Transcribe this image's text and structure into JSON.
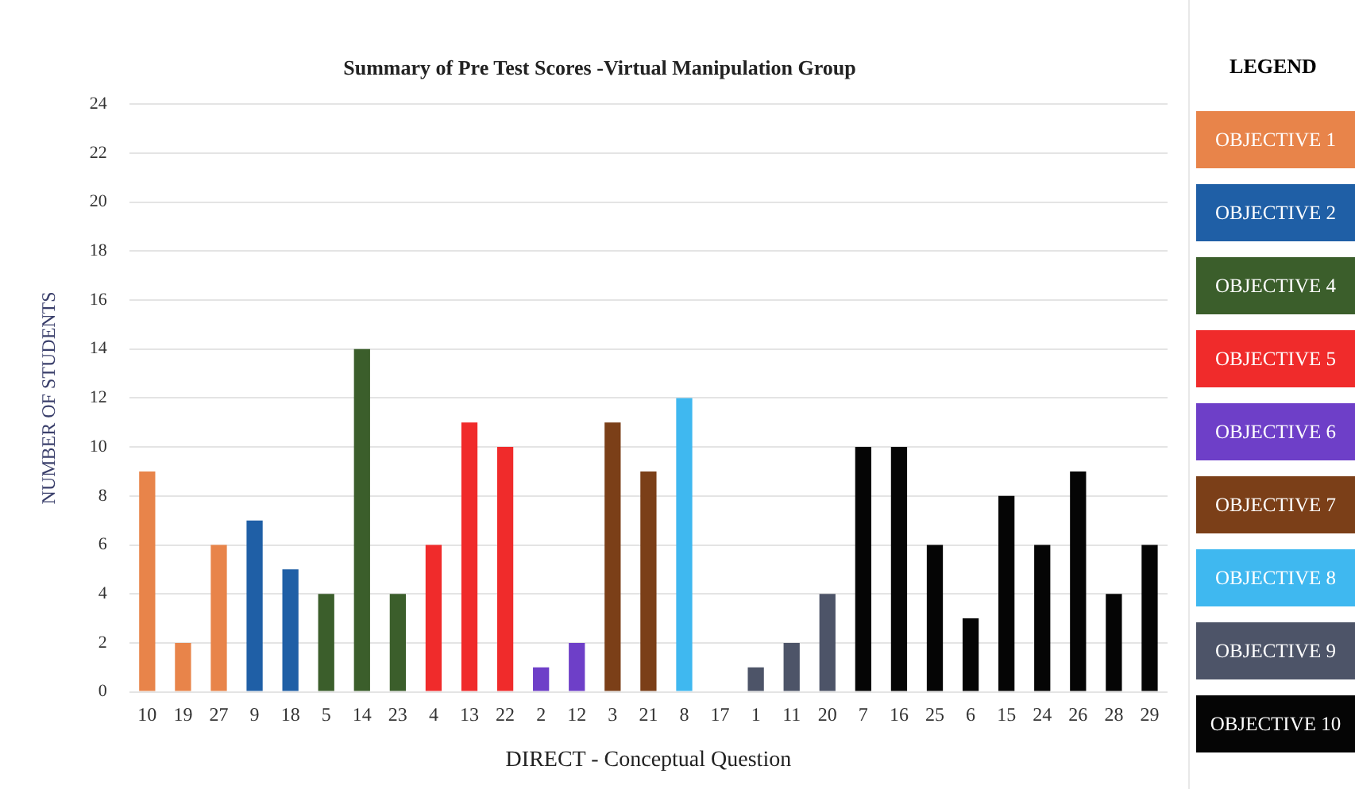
{
  "chart_data": {
    "type": "bar",
    "title": "Summary of Pre Test Scores -Virtual Manipulation Group",
    "xlabel": "DIRECT - Conceptual Question",
    "ylabel": "NUMBER OF STUDENTS",
    "legend_title": "LEGEND",
    "categories": [
      "10",
      "19",
      "27",
      "9",
      "18",
      "5",
      "14",
      "23",
      "4",
      "13",
      "22",
      "2",
      "12",
      "3",
      "21",
      "8",
      "17",
      "1",
      "11",
      "20",
      "7",
      "16",
      "25",
      "6",
      "15",
      "24",
      "26",
      "28",
      "29"
    ],
    "series": [
      {
        "name": "OBJECTIVE 1",
        "color": "#e8844a",
        "values": [
          9,
          2,
          6,
          null,
          null,
          null,
          null,
          null,
          null,
          null,
          null,
          null,
          null,
          null,
          null,
          null,
          null,
          null,
          null,
          null,
          null,
          null,
          null,
          null,
          null,
          null,
          null,
          null,
          null
        ]
      },
      {
        "name": "OBJECTIVE 2",
        "color": "#1f5fa6",
        "values": [
          null,
          null,
          null,
          7,
          5,
          null,
          null,
          null,
          null,
          null,
          null,
          null,
          null,
          null,
          null,
          null,
          null,
          null,
          null,
          null,
          null,
          null,
          null,
          null,
          null,
          null,
          null,
          null,
          null
        ]
      },
      {
        "name": "OBJECTIVE 4",
        "color": "#3b5e2b",
        "values": [
          null,
          null,
          null,
          null,
          null,
          4,
          14,
          4,
          null,
          null,
          null,
          null,
          null,
          null,
          null,
          null,
          null,
          null,
          null,
          null,
          null,
          null,
          null,
          null,
          null,
          null,
          null,
          null,
          null
        ]
      },
      {
        "name": "OBJECTIVE 5",
        "color": "#f02b2b",
        "values": [
          null,
          null,
          null,
          null,
          null,
          null,
          null,
          null,
          6,
          11,
          10,
          null,
          null,
          null,
          null,
          null,
          null,
          null,
          null,
          null,
          null,
          null,
          null,
          null,
          null,
          null,
          null,
          null,
          null
        ]
      },
      {
        "name": "OBJECTIVE 6",
        "color": "#6e3fc8",
        "values": [
          null,
          null,
          null,
          null,
          null,
          null,
          null,
          null,
          null,
          null,
          null,
          1,
          2,
          null,
          null,
          null,
          null,
          null,
          null,
          null,
          null,
          null,
          null,
          null,
          null,
          null,
          null,
          null,
          null
        ]
      },
      {
        "name": "OBJECTIVE 7",
        "color": "#7b3f18",
        "values": [
          null,
          null,
          null,
          null,
          null,
          null,
          null,
          null,
          null,
          null,
          null,
          null,
          null,
          11,
          9,
          null,
          null,
          null,
          null,
          null,
          null,
          null,
          null,
          null,
          null,
          null,
          null,
          null,
          null
        ]
      },
      {
        "name": "OBJECTIVE 8",
        "color": "#3fb8f0",
        "values": [
          null,
          null,
          null,
          null,
          null,
          null,
          null,
          null,
          null,
          null,
          null,
          null,
          null,
          null,
          null,
          12,
          0,
          null,
          null,
          null,
          null,
          null,
          null,
          null,
          null,
          null,
          null,
          null,
          null
        ]
      },
      {
        "name": "OBJECTIVE 9",
        "color": "#4d5468",
        "values": [
          null,
          null,
          null,
          null,
          null,
          null,
          null,
          null,
          null,
          null,
          null,
          null,
          null,
          null,
          null,
          null,
          null,
          1,
          2,
          4,
          null,
          null,
          null,
          null,
          null,
          null,
          null,
          null,
          null
        ]
      },
      {
        "name": "OBJECTIVE 10",
        "color": "#050505",
        "values": [
          null,
          null,
          null,
          null,
          null,
          null,
          null,
          null,
          null,
          null,
          null,
          null,
          null,
          null,
          null,
          null,
          null,
          null,
          null,
          null,
          10,
          10,
          6,
          3,
          8,
          6,
          9,
          4,
          6
        ]
      }
    ],
    "ylim": [
      0,
      24
    ],
    "yticks": [
      0,
      2,
      4,
      6,
      8,
      10,
      12,
      14,
      16,
      18,
      20,
      22,
      24
    ],
    "grid": "y",
    "legend": "right"
  }
}
